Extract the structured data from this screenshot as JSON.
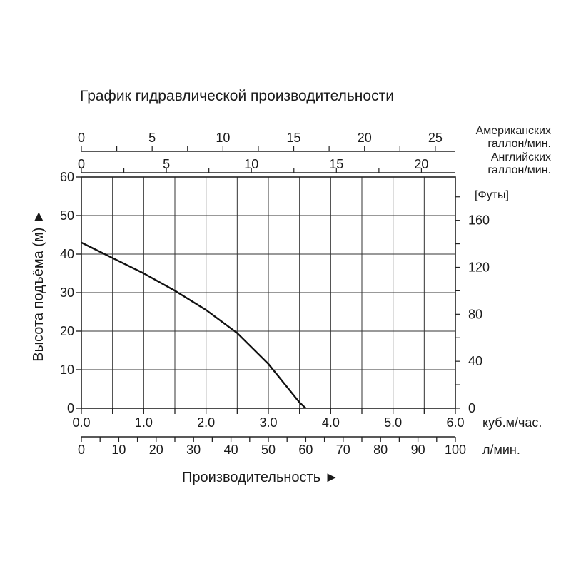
{
  "chart_data": {
    "type": "line",
    "title": "График гидравлической производительности",
    "xlabel": "Производительность ►",
    "ylabel": "Высота подъёма (м) ►",
    "grid": true,
    "x_primary": {
      "unit": "куб.м/час.",
      "range": [
        0,
        6.0
      ],
      "ticks": [
        "0.0",
        "1.0",
        "2.0",
        "3.0",
        "4.0",
        "5.0",
        "6.0"
      ]
    },
    "x_secondary": [
      {
        "unit": "л/мин.",
        "range": [
          0,
          100
        ],
        "ticks": [
          "0",
          "10",
          "20",
          "30",
          "40",
          "50",
          "60",
          "70",
          "80",
          "90",
          "100"
        ]
      },
      {
        "unit": "Американских галлон/мин.",
        "unit_lines": [
          "Американских",
          "галлон/мин."
        ],
        "ticks": [
          "0",
          "5",
          "10",
          "15",
          "20",
          "25"
        ],
        "tick_values": [
          0,
          5,
          10,
          15,
          20,
          25
        ]
      },
      {
        "unit": "Английских галлон/мин.",
        "unit_lines": [
          "Английских",
          "галлон/мин."
        ],
        "ticks": [
          "0",
          "5",
          "10",
          "15",
          "20"
        ],
        "tick_values": [
          0,
          5,
          10,
          15,
          20
        ]
      }
    ],
    "y_primary": {
      "unit": "м",
      "range": [
        0,
        60
      ],
      "ticks": [
        "0",
        "10",
        "20",
        "30",
        "40",
        "50",
        "60"
      ]
    },
    "y_secondary": {
      "unit": "[Футы]",
      "ticks": [
        "0",
        "40",
        "80",
        "120",
        "160"
      ],
      "tick_values": [
        0,
        40,
        80,
        120,
        160
      ]
    },
    "series": [
      {
        "x": [
          0.0,
          0.5,
          1.0,
          1.5,
          2.0,
          2.5,
          3.0,
          3.3,
          3.5,
          3.6
        ],
        "y": [
          43,
          39,
          35,
          30.5,
          25.5,
          19.5,
          11.5,
          5.5,
          1.5,
          0
        ]
      }
    ]
  }
}
